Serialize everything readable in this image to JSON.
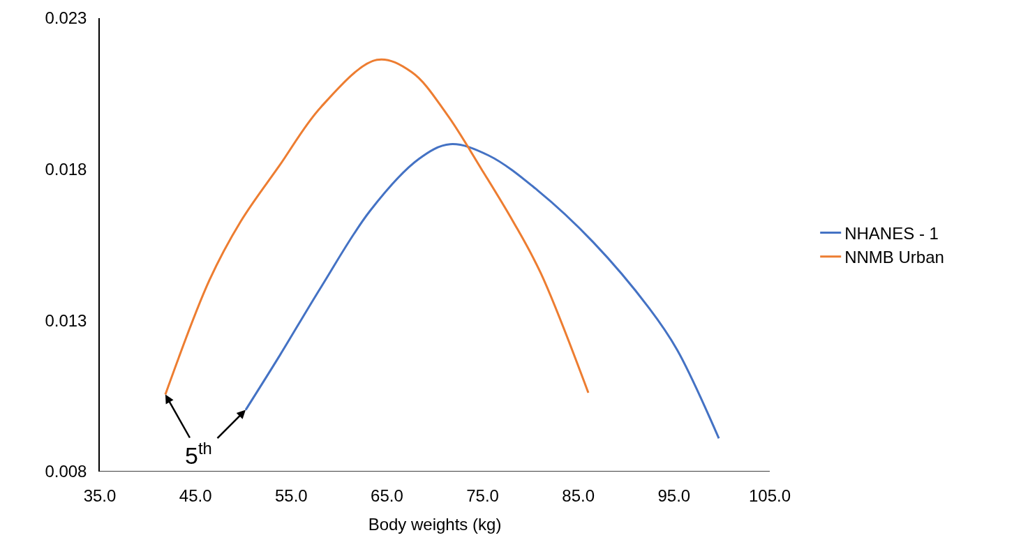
{
  "chart_data": {
    "type": "line",
    "xlabel": "Body weights (kg)",
    "annotations": [
      {
        "text": "5$^{th}$",
        "x": 41.85,
        "y": 0.01055
      }
    ],
    "legend": "right",
    "marker": "none",
    "line_style": "solid",
    "xlim": [
      35,
      105
    ],
    "xticks": [
      {
        "value": 35,
        "label": "35.0"
      },
      {
        "value": 45,
        "label": "45.0"
      },
      {
        "value": 55,
        "label": "55.0"
      },
      {
        "value": 65,
        "label": "65.0"
      },
      {
        "value": 75,
        "label": "75.0"
      },
      {
        "value": 85,
        "label": "85.0"
      },
      {
        "value": 95,
        "label": "95.0"
      },
      {
        "value": 105,
        "label": "105.0"
      }
    ],
    "ylim": [
      0.008,
      0.023
    ],
    "yticks": [
      0.008,
      0.013,
      0.018,
      0.023
    ],
    "series": [
      {
        "name": "NHANES - 1",
        "color": "#4472c4",
        "x": [
          50.24,
          53.74,
          58.11,
          63.22,
          68.32,
          71.6,
          75.61,
          80.72,
          86.55,
          92.39,
          95.3,
          99.68
        ],
        "values": [
          0.01004,
          0.01181,
          0.0141,
          0.01662,
          0.01834,
          0.01883,
          0.01846,
          0.01731,
          0.01559,
          0.01341,
          0.01204,
          0.0091
        ]
      },
      {
        "name": "NNMB Urban",
        "color": "#ed7d31",
        "x": [
          41.85,
          46.45,
          49.73,
          53.74,
          58.11,
          63.95,
          67.6,
          71.24,
          74.89,
          78.17,
          81.08,
          86.04
        ],
        "values": [
          0.01055,
          0.01433,
          0.01628,
          0.01811,
          0.02006,
          0.02162,
          0.02121,
          0.01983,
          0.018,
          0.01628,
          0.01456,
          0.01061
        ]
      }
    ]
  }
}
